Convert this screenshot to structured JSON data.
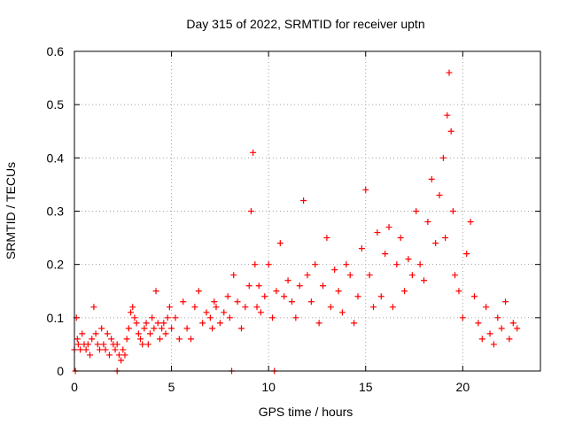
{
  "chart_data": {
    "type": "scatter",
    "title": "Day 315 of 2022, SRMTID for receiver uptn",
    "xlabel": "GPS time / hours",
    "ylabel": "SRMTID / TECUs",
    "xlim": [
      0,
      24
    ],
    "ylim": [
      0,
      0.6
    ],
    "x_ticks": [
      0,
      5,
      10,
      15,
      20
    ],
    "x_tick_labels": [
      "0",
      "5",
      "10",
      "15",
      "20"
    ],
    "y_ticks": [
      0,
      0.1,
      0.2,
      0.3,
      0.4,
      0.5,
      0.6
    ],
    "y_tick_labels": [
      "0",
      "0.1",
      "0.2",
      "0.3",
      "0.4",
      "0.5",
      "0.6"
    ],
    "grid": true,
    "marker": "+",
    "series": [
      {
        "name": "SRMTID",
        "color": "#ff0000",
        "x": [
          0.0,
          0.1,
          0.15,
          0.2,
          0.3,
          0.4,
          0.5,
          0.6,
          0.7,
          0.8,
          0.9,
          1.0,
          1.1,
          1.2,
          1.3,
          1.4,
          1.5,
          1.6,
          1.7,
          1.8,
          1.9,
          2.0,
          2.1,
          2.2,
          2.3,
          2.4,
          2.5,
          2.6,
          2.7,
          2.8,
          2.9,
          3.0,
          3.1,
          3.2,
          3.3,
          3.4,
          3.5,
          3.6,
          3.7,
          3.8,
          3.9,
          4.0,
          4.1,
          4.2,
          4.3,
          4.4,
          4.5,
          4.6,
          4.7,
          4.8,
          4.9,
          5.0,
          5.2,
          5.4,
          5.6,
          5.8,
          6.0,
          6.2,
          6.4,
          6.6,
          6.8,
          7.0,
          7.1,
          7.2,
          7.3,
          7.5,
          7.7,
          7.9,
          8.0,
          8.2,
          8.4,
          8.6,
          8.8,
          9.0,
          9.1,
          9.2,
          9.3,
          9.4,
          9.5,
          9.6,
          9.8,
          10.0,
          10.2,
          10.4,
          10.6,
          10.8,
          11.0,
          11.2,
          11.4,
          11.6,
          11.8,
          12.0,
          12.2,
          12.4,
          12.6,
          12.8,
          13.0,
          13.2,
          13.4,
          13.6,
          13.8,
          14.0,
          14.2,
          14.4,
          14.6,
          14.8,
          15.0,
          15.2,
          15.4,
          15.6,
          15.8,
          16.0,
          16.2,
          16.4,
          16.6,
          16.8,
          17.0,
          17.2,
          17.4,
          17.6,
          17.8,
          18.0,
          18.2,
          18.4,
          18.6,
          18.8,
          19.0,
          19.1,
          19.2,
          19.3,
          19.4,
          19.5,
          19.6,
          19.8,
          20.0,
          20.2,
          20.4,
          20.6,
          20.8,
          21.0,
          21.2,
          21.4,
          21.6,
          21.8,
          22.0,
          22.2,
          22.4,
          22.6,
          22.8,
          0.05,
          2.2,
          8.1,
          10.3
        ],
        "y": [
          0.04,
          0.1,
          0.06,
          0.05,
          0.04,
          0.07,
          0.05,
          0.04,
          0.05,
          0.03,
          0.06,
          0.12,
          0.07,
          0.05,
          0.04,
          0.08,
          0.05,
          0.04,
          0.07,
          0.03,
          0.06,
          0.05,
          0.04,
          0.05,
          0.03,
          0.02,
          0.04,
          0.03,
          0.06,
          0.08,
          0.11,
          0.12,
          0.1,
          0.09,
          0.07,
          0.06,
          0.05,
          0.08,
          0.09,
          0.05,
          0.07,
          0.1,
          0.08,
          0.15,
          0.09,
          0.06,
          0.08,
          0.09,
          0.07,
          0.1,
          0.12,
          0.08,
          0.1,
          0.06,
          0.13,
          0.08,
          0.06,
          0.12,
          0.15,
          0.09,
          0.11,
          0.1,
          0.08,
          0.13,
          0.12,
          0.09,
          0.11,
          0.14,
          0.1,
          0.18,
          0.13,
          0.08,
          0.12,
          0.16,
          0.3,
          0.41,
          0.2,
          0.12,
          0.16,
          0.11,
          0.14,
          0.2,
          0.1,
          0.15,
          0.24,
          0.14,
          0.17,
          0.13,
          0.1,
          0.16,
          0.32,
          0.18,
          0.13,
          0.2,
          0.09,
          0.16,
          0.25,
          0.12,
          0.19,
          0.15,
          0.11,
          0.2,
          0.18,
          0.09,
          0.14,
          0.23,
          0.34,
          0.18,
          0.12,
          0.26,
          0.14,
          0.22,
          0.27,
          0.12,
          0.2,
          0.25,
          0.15,
          0.21,
          0.18,
          0.3,
          0.2,
          0.17,
          0.28,
          0.36,
          0.24,
          0.33,
          0.4,
          0.25,
          0.48,
          0.56,
          0.45,
          0.3,
          0.18,
          0.15,
          0.1,
          0.22,
          0.28,
          0.14,
          0.09,
          0.06,
          0.12,
          0.07,
          0.05,
          0.1,
          0.08,
          0.13,
          0.06,
          0.09,
          0.08,
          0.0,
          0.0,
          0.0,
          0.0
        ]
      }
    ]
  }
}
